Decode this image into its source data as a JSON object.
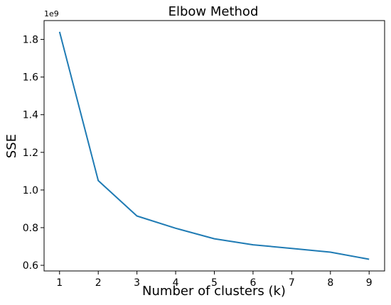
{
  "chart_data": {
    "type": "line",
    "title": "Elbow Method",
    "xlabel": "Number of clusters (k)",
    "ylabel": "SSE",
    "y_offset_label": "1e9",
    "x": [
      1,
      2,
      3,
      4,
      5,
      6,
      7,
      8,
      9
    ],
    "series": [
      {
        "values": [
          1.84,
          1.05,
          0.862,
          0.797,
          0.741,
          0.709,
          0.69,
          0.67,
          0.632
        ],
        "color": "#1f7bb4"
      }
    ],
    "xlim": [
      0.6,
      9.4
    ],
    "ylim": [
      0.57,
      1.9
    ],
    "x_ticks": [
      "1",
      "2",
      "3",
      "4",
      "5",
      "6",
      "7",
      "8",
      "9"
    ],
    "y_ticks": [
      "0.6",
      "0.8",
      "1.0",
      "1.2",
      "1.4",
      "1.6",
      "1.8"
    ],
    "y_tick_values": [
      0.6,
      0.8,
      1.0,
      1.2,
      1.4,
      1.6,
      1.8
    ],
    "grid": false,
    "legend": "none"
  }
}
